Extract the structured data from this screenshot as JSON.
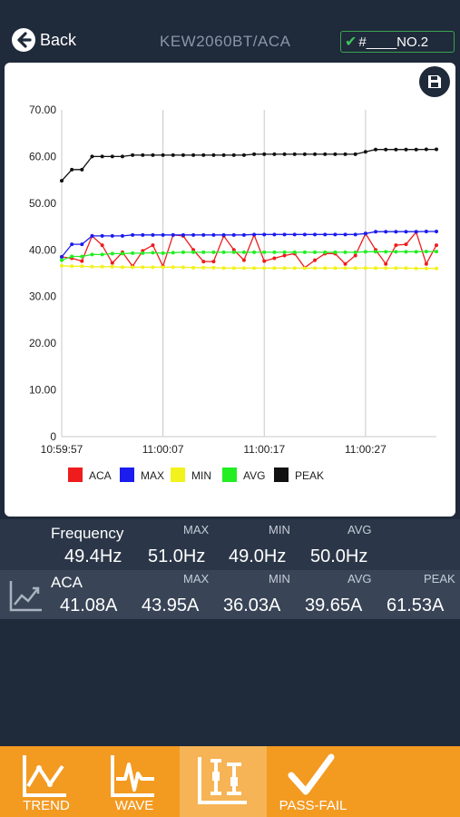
{
  "header": {
    "back_label": "Back",
    "title": "KEW2060BT/ACA",
    "tag": "#____NO.2"
  },
  "chart_data": {
    "type": "line",
    "x": [
      "10:59:57",
      "",
      "",
      "",
      "",
      "",
      "",
      "",
      "",
      "",
      "11:00:07",
      "",
      "",
      "",
      "",
      "",
      "",
      "",
      "",
      "",
      "11:00:17",
      "",
      "",
      "",
      "",
      "",
      "",
      "",
      "",
      "",
      "11:00:27",
      "",
      "",
      "",
      "",
      "",
      "",
      ""
    ],
    "x_tick_labels": [
      "10:59:57",
      "11:00:07",
      "11:00:17",
      "11:00:27"
    ],
    "ylim": [
      0,
      70
    ],
    "y_ticks": [
      "0",
      "10.00",
      "20.00",
      "30.00",
      "40.00",
      "50.00",
      "60.00",
      "70.00"
    ],
    "grid": true,
    "legend_position": "bottom",
    "series": [
      {
        "name": "ACA",
        "color": "#ee1c1c",
        "values": [
          38.5,
          38.2,
          37.6,
          43.0,
          41.0,
          37.2,
          39.5,
          36.5,
          39.8,
          41.0,
          36.5,
          43.2,
          43.0,
          40.0,
          37.5,
          37.5,
          43.0,
          40.0,
          37.8,
          43.2,
          37.6,
          38.2,
          38.8,
          39.2,
          36.2,
          37.8,
          39.2,
          39.2,
          37.0,
          38.8,
          43.5,
          40.0,
          37.0,
          41.0,
          41.2,
          43.8,
          37.0,
          41.0
        ]
      },
      {
        "name": "MAX",
        "color": "#1c1cee",
        "values": [
          38.5,
          41.2,
          41.2,
          43.0,
          43.0,
          43.0,
          43.0,
          43.2,
          43.2,
          43.2,
          43.2,
          43.2,
          43.2,
          43.2,
          43.2,
          43.2,
          43.2,
          43.2,
          43.2,
          43.3,
          43.3,
          43.3,
          43.3,
          43.3,
          43.3,
          43.3,
          43.3,
          43.3,
          43.3,
          43.3,
          43.5,
          43.9,
          43.9,
          43.9,
          43.9,
          43.9,
          43.95,
          43.95
        ]
      },
      {
        "name": "MIN",
        "color": "#f2f21c",
        "values": [
          36.6,
          36.5,
          36.5,
          36.4,
          36.4,
          36.4,
          36.3,
          36.3,
          36.3,
          36.3,
          36.3,
          36.3,
          36.3,
          36.2,
          36.2,
          36.2,
          36.1,
          36.1,
          36.1,
          36.1,
          36.1,
          36.1,
          36.1,
          36.1,
          36.1,
          36.1,
          36.1,
          36.1,
          36.1,
          36.1,
          36.1,
          36.1,
          36.1,
          36.1,
          36.1,
          36.03,
          36.03,
          36.03
        ]
      },
      {
        "name": "AVG",
        "color": "#22ee22",
        "values": [
          37.8,
          38.6,
          38.6,
          39.0,
          39.0,
          39.2,
          39.2,
          39.3,
          39.3,
          39.4,
          39.3,
          39.4,
          39.5,
          39.5,
          39.5,
          39.5,
          39.5,
          39.5,
          39.5,
          39.5,
          39.5,
          39.5,
          39.5,
          39.5,
          39.5,
          39.5,
          39.5,
          39.5,
          39.5,
          39.5,
          39.6,
          39.6,
          39.6,
          39.6,
          39.6,
          39.6,
          39.65,
          39.65
        ]
      },
      {
        "name": "PEAK",
        "color": "#111111",
        "values": [
          54.8,
          57.2,
          57.2,
          60.0,
          60.0,
          60.0,
          60.0,
          60.3,
          60.3,
          60.3,
          60.3,
          60.3,
          60.3,
          60.3,
          60.3,
          60.3,
          60.3,
          60.3,
          60.3,
          60.5,
          60.5,
          60.5,
          60.5,
          60.5,
          60.5,
          60.5,
          60.5,
          60.5,
          60.5,
          60.5,
          61.0,
          61.5,
          61.5,
          61.5,
          61.5,
          61.5,
          61.53,
          61.53
        ]
      }
    ]
  },
  "frequency": {
    "label": "Frequency",
    "value": "49.4Hz",
    "max_label": "MAX",
    "max": "51.0Hz",
    "min_label": "MIN",
    "min": "49.0Hz",
    "avg_label": "AVG",
    "avg": "50.0Hz"
  },
  "aca": {
    "label": "ACA",
    "value": "41.08A",
    "max_label": "MAX",
    "max": "43.95A",
    "min_label": "MIN",
    "min": "36.03A",
    "avg_label": "AVG",
    "avg": "39.65A",
    "peak_label": "PEAK",
    "peak": "61.53A"
  },
  "bottom_nav": {
    "trend": "TREND",
    "wave": "WAVE",
    "pass_fail": "PASS-FAIL",
    "active": "measure-icon"
  },
  "colors": {
    "background": "#1f2a3a",
    "accent": "#f39a21",
    "tag_border": "#3aa352"
  }
}
